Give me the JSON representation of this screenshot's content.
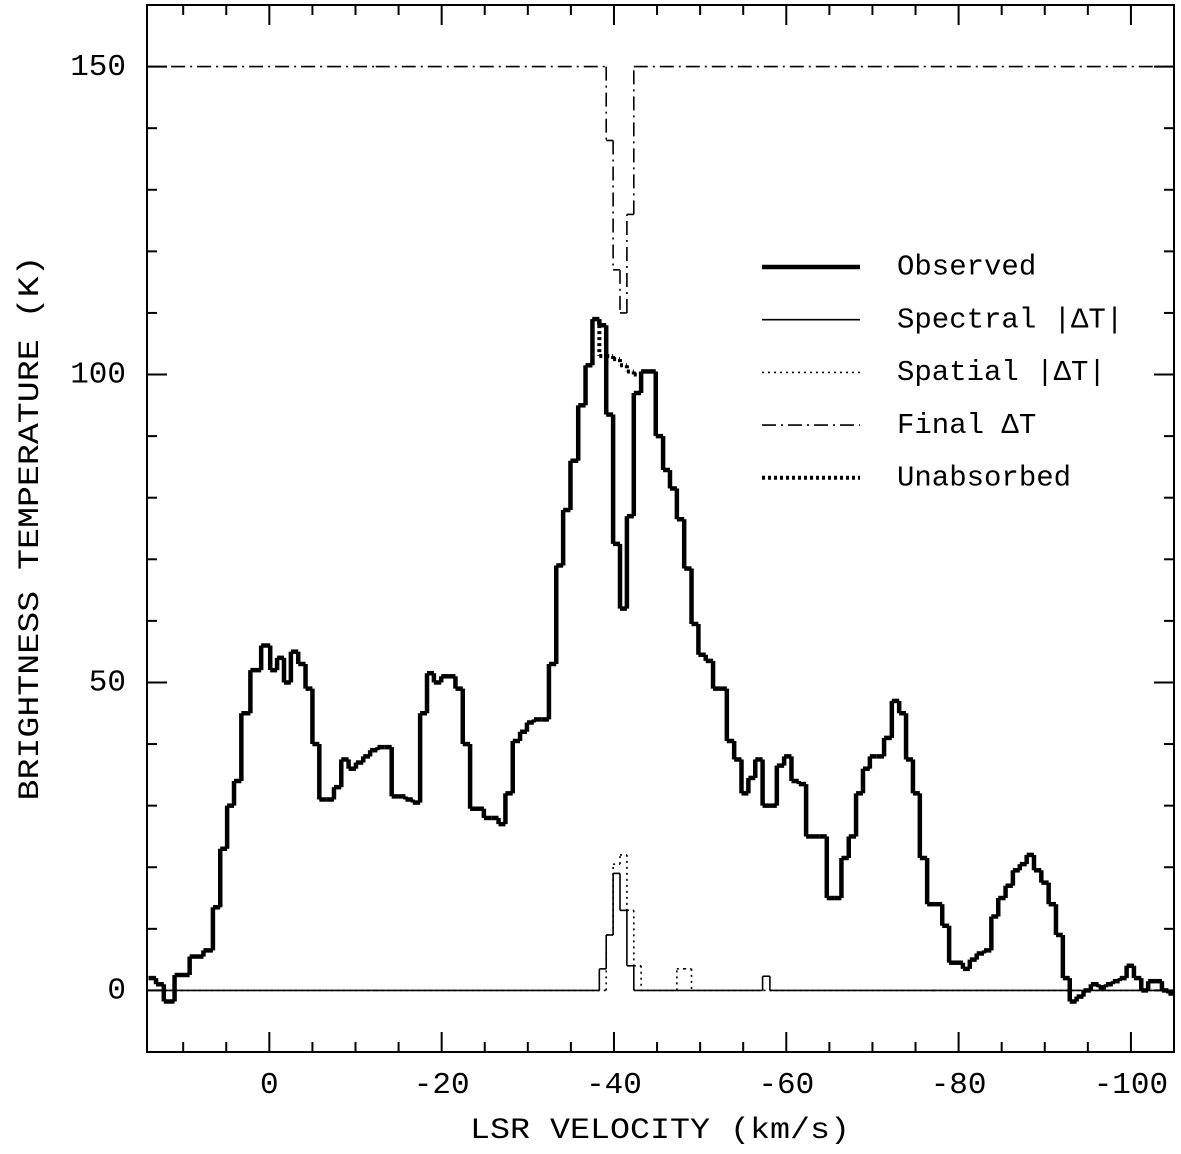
{
  "chart_data": {
    "type": "step",
    "x_label": "LSR VELOCITY (km/s)",
    "y_label": "BRIGHTNESS TEMPERATURE (K)",
    "xlim": [
      14.2,
      -105
    ],
    "ylim": [
      -10,
      160
    ],
    "xticks": [
      0,
      -20,
      -40,
      -60,
      -80,
      -100
    ],
    "xticks_minor": [
      10,
      5,
      -5,
      -10,
      -15,
      -25,
      -30,
      -35,
      -45,
      -50,
      -55,
      -65,
      -70,
      -75,
      -85,
      -90,
      -95
    ],
    "yticks": [
      0,
      50,
      100,
      150
    ],
    "yticks_minor": [
      10,
      20,
      30,
      40,
      60,
      70,
      80,
      90,
      110,
      120,
      130,
      140
    ],
    "legend": "right",
    "series": [
      {
        "name": "Observed",
        "color": "#000000",
        "line_width": 4.5,
        "line_style": "solid",
        "x": [
          13.6,
          12.7,
          11.8,
          10.2,
          8.3,
          7.0,
          6.1,
          5.3,
          4.5,
          3.7,
          2.8,
          1.6,
          0.3,
          -0.5,
          -1.3,
          -2.1,
          -2.9,
          -3.8,
          -4.6,
          -5.4,
          -6.2,
          -7.1,
          -7.9,
          -8.8,
          -9.6,
          -10.5,
          -11.3,
          -12.1,
          -13.0,
          -13.8,
          -14.6,
          -15.4,
          -16.2,
          -17.1,
          -17.9,
          -18.7,
          -19.5,
          -20.4,
          -21.2,
          -22.0,
          -22.9,
          -23.7,
          -24.5,
          -25.3,
          -26.2,
          -27.0,
          -27.8,
          -28.7,
          -29.5,
          -30.3,
          -31.1,
          -32.0,
          -32.9,
          -33.7,
          -34.5,
          -35.4,
          -36.3,
          -37.1,
          -37.9,
          -38.7,
          -39.5,
          -40.3,
          -41.1,
          -41.9,
          -42.7,
          -43.6,
          -44.4,
          -45.3,
          -46.1,
          -46.9,
          -47.7,
          -48.6,
          -49.4,
          -50.2,
          -51.1,
          -51.9,
          -52.7,
          -53.5,
          -54.4,
          -55.2,
          -56.0,
          -56.8,
          -57.7,
          -58.5,
          -59.3,
          -60.2,
          -61.0,
          -61.9,
          -62.7,
          -63.5,
          -64.3,
          -65.1,
          -66.0,
          -66.8,
          -67.7,
          -68.5,
          -69.3,
          -70.1,
          -70.9,
          -71.8,
          -72.7,
          -73.5,
          -74.3,
          -75.1,
          -75.9,
          -76.8,
          -77.7,
          -78.5,
          -79.3,
          -80.1,
          -80.9,
          -81.7,
          -82.5,
          -83.4,
          -84.2,
          -85.0,
          -85.9,
          -86.7,
          -87.5,
          -88.3,
          -89.2,
          -90.0,
          -90.9,
          -91.7,
          -92.5,
          -93.3,
          -94.1,
          -94.9,
          -95.8,
          -96.7,
          -97.5,
          -98.3,
          -99.1,
          -99.9,
          -100.8,
          -101.6,
          -102.4,
          -103.2,
          -104.0,
          -104.7
        ],
        "values": [
          2,
          1,
          -1.8,
          2.5,
          5.5,
          6.5,
          13.5,
          23,
          30,
          34,
          45,
          52,
          56,
          52,
          54,
          50,
          55,
          53,
          49,
          40,
          31,
          31,
          33,
          37.5,
          36,
          37,
          38,
          39,
          39.5,
          39.5,
          31.5,
          31.5,
          31,
          30.5,
          45,
          51.5,
          50,
          51,
          51,
          49,
          40,
          29.5,
          29.5,
          28,
          28,
          27,
          32,
          40.5,
          42,
          43.5,
          44,
          44,
          53,
          69,
          78,
          86,
          95,
          101.5,
          109,
          108,
          93.5,
          72.5,
          62,
          77,
          97,
          100.5,
          100.5,
          90,
          84.5,
          81.5,
          76.5,
          68.5,
          59.5,
          54.5,
          53.5,
          49,
          49,
          40.5,
          37.5,
          32,
          34.5,
          37.5,
          30,
          30,
          36.5,
          38,
          34,
          33.5,
          25,
          25,
          25,
          15,
          15,
          21.5,
          25,
          32,
          36,
          38,
          38,
          41,
          47,
          45,
          37.5,
          32,
          21.5,
          14,
          14,
          10.5,
          4.5,
          4.5,
          3.5,
          5,
          6,
          6.5,
          12,
          15,
          17,
          19.5,
          20.5,
          22,
          19.5,
          17.5,
          14,
          9,
          2,
          -1.8,
          -1,
          0,
          1,
          0.5,
          1,
          1.5,
          2,
          4,
          2,
          0,
          1.5,
          1.5,
          0,
          -0.5
        ]
      },
      {
        "name": "Spectral |ΔT|",
        "color": "#000000",
        "line_width": 1.6,
        "line_style": "solid",
        "x": [
          14,
          -37.9,
          -38.7,
          -39.5,
          -40.3,
          -41.1,
          -41.9,
          -42.7,
          -56.8,
          -57.7,
          -58.5,
          -104.8
        ],
        "values": [
          0,
          0,
          3.5,
          9,
          19,
          13,
          4,
          0,
          0,
          2.3,
          0,
          0
        ]
      },
      {
        "name": "Spatial |ΔT|",
        "color": "#000000",
        "line_width": 1.6,
        "line_style": "dotted",
        "x": [
          14,
          -38.7,
          -39.5,
          -40.3,
          -41.1,
          -41.9,
          -42.7,
          -43.6,
          -46.9,
          -47.7,
          -48.6,
          -49.4,
          -104.8
        ],
        "values": [
          0,
          0,
          9,
          20.5,
          22,
          13,
          4,
          0,
          0,
          3.5,
          3.5,
          0,
          0
        ]
      },
      {
        "name": "Final ΔT",
        "color": "#000000",
        "line_width": 1.6,
        "line_style": "dashdot",
        "x": [
          14,
          -38.7,
          -39.5,
          -40.3,
          -41.1,
          -41.9,
          -42.7,
          -104.8
        ],
        "values": [
          150,
          150,
          138,
          117,
          110,
          126,
          150,
          150
        ]
      },
      {
        "name": "Unabsorbed",
        "color": "#000000",
        "line_width": 4,
        "line_style": "heavydot",
        "x": [
          -37.9,
          -38.7,
          -39.5,
          -40.3,
          -41.1,
          -41.9,
          -42.7,
          -43.6
        ],
        "values": [
          109,
          103,
          103,
          102.5,
          101.5,
          100.5,
          100,
          100.5
        ]
      }
    ]
  }
}
